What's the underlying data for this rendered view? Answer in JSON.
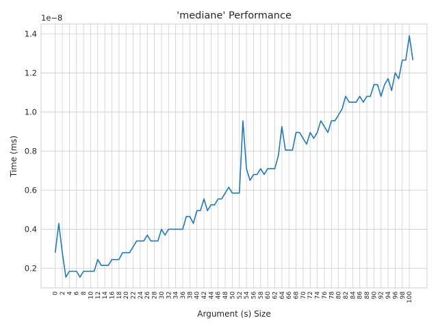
{
  "chart_data": {
    "type": "line",
    "title": "'mediane' Performance",
    "xlabel": "Argument (s) Size",
    "ylabel": "Time (ms)",
    "y_offset_label": "1e−8",
    "y_scale": 1e-08,
    "grid": true,
    "xlim": [
      -4,
      105
    ],
    "ylim": [
      0.1,
      1.45
    ],
    "yticks": [
      0.2,
      0.4,
      0.6,
      0.8,
      1.0,
      1.2,
      1.4
    ],
    "ytick_labels": [
      "0.2",
      "0.4",
      "0.6",
      "0.8",
      "1.0",
      "1.2",
      "1.4"
    ],
    "xtick_step": 2,
    "series": [
      {
        "color": "#1f77b4",
        "x": [
          0,
          1,
          2,
          3,
          4,
          5,
          6,
          7,
          8,
          9,
          10,
          11,
          12,
          13,
          14,
          15,
          16,
          17,
          18,
          19,
          20,
          21,
          22,
          23,
          24,
          25,
          26,
          27,
          28,
          29,
          30,
          31,
          32,
          33,
          34,
          35,
          36,
          37,
          38,
          39,
          40,
          41,
          42,
          43,
          44,
          45,
          46,
          47,
          48,
          49,
          50,
          51,
          52,
          53,
          54,
          55,
          56,
          57,
          58,
          59,
          60,
          61,
          62,
          63,
          64,
          65,
          66,
          67,
          68,
          69,
          70,
          71,
          72,
          73,
          74,
          75,
          76,
          77,
          78,
          79,
          80,
          81,
          82,
          83,
          84,
          85,
          86,
          87,
          88,
          89,
          90,
          91,
          92,
          93,
          94,
          95,
          96,
          97,
          98,
          99,
          100,
          101
        ],
        "values": [
          0.28,
          0.43,
          0.28,
          0.155,
          0.185,
          0.185,
          0.185,
          0.155,
          0.185,
          0.185,
          0.185,
          0.185,
          0.245,
          0.215,
          0.215,
          0.215,
          0.245,
          0.245,
          0.245,
          0.28,
          0.28,
          0.28,
          0.31,
          0.34,
          0.34,
          0.34,
          0.37,
          0.34,
          0.34,
          0.34,
          0.4,
          0.37,
          0.4,
          0.4,
          0.4,
          0.4,
          0.4,
          0.465,
          0.465,
          0.43,
          0.495,
          0.495,
          0.555,
          0.495,
          0.525,
          0.525,
          0.555,
          0.555,
          0.585,
          0.615,
          0.585,
          0.585,
          0.585,
          0.955,
          0.71,
          0.65,
          0.68,
          0.68,
          0.71,
          0.68,
          0.71,
          0.71,
          0.71,
          0.775,
          0.925,
          0.805,
          0.805,
          0.805,
          0.895,
          0.895,
          0.865,
          0.835,
          0.895,
          0.865,
          0.895,
          0.955,
          0.925,
          0.895,
          0.955,
          0.955,
          0.985,
          1.015,
          1.08,
          1.05,
          1.05,
          1.05,
          1.08,
          1.05,
          1.08,
          1.08,
          1.14,
          1.14,
          1.08,
          1.14,
          1.17,
          1.11,
          1.2,
          1.17,
          1.265,
          1.265,
          1.39,
          1.265
        ]
      }
    ]
  }
}
